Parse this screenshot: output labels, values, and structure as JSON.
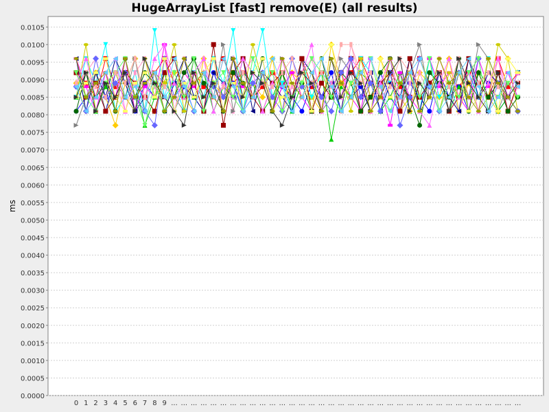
{
  "chart_data": {
    "type": "line",
    "title": "HugeArrayList [fast] remove(E) (all results)",
    "xlabel": "",
    "ylabel": "ms",
    "ylim": [
      0,
      0.0108
    ],
    "ytick_step": 0.0005,
    "grid": true,
    "legend": "none",
    "x_tick_labels": [
      "0",
      "1",
      "2",
      "3",
      "4",
      "5",
      "6",
      "7",
      "8",
      "9",
      "...",
      "...",
      "...",
      "...",
      "...",
      "...",
      "...",
      "...",
      "...",
      "...",
      "...",
      "...",
      "...",
      "...",
      "...",
      "...",
      "...",
      "...",
      "...",
      "...",
      "...",
      "...",
      "...",
      "...",
      "...",
      "...",
      "...",
      "...",
      "...",
      "...",
      "...",
      "...",
      "...",
      "...",
      "...",
      "..."
    ],
    "series_colors": [
      "#ff0000",
      "#0000ff",
      "#00cc00",
      "#ffcc00",
      "#ff00ff",
      "#00ffff",
      "#ff99cc",
      "#808080",
      "#cccc00",
      "#000080",
      "#990000",
      "#006600",
      "#ff66ff",
      "#6666ff",
      "#ffff66",
      "#66ff66",
      "#ffaaaa",
      "#333333",
      "#999900",
      "#66ccff"
    ],
    "series": [
      {
        "values": [
          0.0092,
          0.0089,
          0.0085,
          0.0096,
          0.0088,
          0.0092,
          0.0085,
          0.0089,
          0.0092,
          0.0096,
          0.0089,
          0.0085,
          0.0092,
          0.0088,
          0.0085,
          0.0096,
          0.0089,
          0.0092,
          0.0085,
          0.0088,
          0.0092,
          0.0089,
          0.0085,
          0.0096,
          0.0088,
          0.0092,
          0.0085,
          0.0089,
          0.0092,
          0.0096,
          0.0089,
          0.0085,
          0.0092,
          0.0088,
          0.0085,
          0.0096,
          0.0089,
          0.0092,
          0.0085,
          0.0088,
          0.0092,
          0.0089,
          0.0085,
          0.0096,
          0.0088,
          0.0092
        ]
      },
      {
        "values": [
          0.0081,
          0.0085,
          0.0089,
          0.0081,
          0.0092,
          0.0085,
          0.0081,
          0.0089,
          0.0085,
          0.0092,
          0.0081,
          0.0088,
          0.0085,
          0.0081,
          0.0092,
          0.0085,
          0.0089,
          0.0081,
          0.0085,
          0.0092,
          0.0081,
          0.0088,
          0.0085,
          0.0081,
          0.0089,
          0.0085,
          0.0092,
          0.0081,
          0.0085,
          0.0088,
          0.0081,
          0.0092,
          0.0085,
          0.0081,
          0.0089,
          0.0085,
          0.0081,
          0.0092,
          0.0085,
          0.0088,
          0.0081,
          0.0085,
          0.0089,
          0.0081,
          0.0085,
          0.0081
        ]
      },
      {
        "values": [
          0.0085,
          0.0092,
          0.0081,
          0.0088,
          0.0085,
          0.0092,
          0.0089,
          0.0077,
          0.0085,
          0.0092,
          0.0081,
          0.0089,
          0.0085,
          0.0092,
          0.0081,
          0.0088,
          0.0085,
          0.0092,
          0.0089,
          0.0081,
          0.0085,
          0.0092,
          0.0081,
          0.0089,
          0.0085,
          0.0092,
          0.0073,
          0.0088,
          0.0085,
          0.0092,
          0.0089,
          0.0081,
          0.0085,
          0.0092,
          0.0081,
          0.0089,
          0.0085,
          0.0092,
          0.0081,
          0.0088,
          0.0085,
          0.0092,
          0.0089,
          0.0081,
          0.0085,
          0.0089
        ]
      },
      {
        "values": [
          0.0089,
          0.0081,
          0.0092,
          0.0085,
          0.0077,
          0.0089,
          0.0096,
          0.0085,
          0.0081,
          0.0089,
          0.0092,
          0.0085,
          0.0081,
          0.0096,
          0.0089,
          0.0085,
          0.0092,
          0.0081,
          0.0089,
          0.0085,
          0.0096,
          0.0081,
          0.0092,
          0.0089,
          0.0085,
          0.0081,
          0.01,
          0.0089,
          0.0085,
          0.0092,
          0.0081,
          0.0096,
          0.0089,
          0.0085,
          0.0081,
          0.0092,
          0.0089,
          0.0085,
          0.0096,
          0.0081,
          0.0089,
          0.0092,
          0.0085,
          0.0081,
          0.0096,
          0.0092
        ]
      },
      {
        "values": [
          0.0096,
          0.0088,
          0.0081,
          0.0092,
          0.0085,
          0.0096,
          0.0081,
          0.0088,
          0.0085,
          0.01,
          0.0081,
          0.0092,
          0.0088,
          0.0085,
          0.0096,
          0.0081,
          0.0092,
          0.0088,
          0.0085,
          0.0096,
          0.0081,
          0.0088,
          0.0092,
          0.0085,
          0.0081,
          0.0096,
          0.0088,
          0.0092,
          0.0085,
          0.0081,
          0.0096,
          0.0088,
          0.0077,
          0.0092,
          0.0085,
          0.0081,
          0.0096,
          0.0088,
          0.0092,
          0.0085,
          0.0081,
          0.0096,
          0.0088,
          0.0085,
          0.0092,
          0.0085
        ]
      },
      {
        "values": [
          0.0085,
          0.0096,
          0.0089,
          0.01,
          0.0081,
          0.0085,
          0.0092,
          0.0081,
          0.0104,
          0.0085,
          0.0089,
          0.0081,
          0.0092,
          0.0085,
          0.0096,
          0.0089,
          0.0104,
          0.0081,
          0.0092,
          0.0104,
          0.0085,
          0.0089,
          0.0081,
          0.0096,
          0.0085,
          0.0092,
          0.0089,
          0.0081,
          0.0085,
          0.0096,
          0.0092,
          0.0081,
          0.0089,
          0.0085,
          0.0092,
          0.0081,
          0.0096,
          0.0085,
          0.0089,
          0.0081,
          0.0092,
          0.0085,
          0.0096,
          0.0089,
          0.0085,
          0.0092
        ]
      },
      {
        "values": [
          0.0088,
          0.0092,
          0.0096,
          0.0085,
          0.0089,
          0.0081,
          0.0092,
          0.0096,
          0.0088,
          0.0085,
          0.0081,
          0.0092,
          0.0089,
          0.0096,
          0.0085,
          0.0088,
          0.0081,
          0.0092,
          0.0096,
          0.0089,
          0.0085,
          0.0081,
          0.0088,
          0.0092,
          0.0096,
          0.0085,
          0.0089,
          0.0081,
          0.01,
          0.0092,
          0.0085,
          0.0088,
          0.0096,
          0.0081,
          0.0089,
          0.0092,
          0.0085,
          0.0096,
          0.0088,
          0.0081,
          0.0092,
          0.0089,
          0.0085,
          0.0096,
          0.0081,
          0.0088
        ]
      },
      {
        "values": [
          0.0077,
          0.0085,
          0.0092,
          0.0081,
          0.0089,
          0.0085,
          0.0096,
          0.0081,
          0.0092,
          0.0089,
          0.0085,
          0.0081,
          0.0096,
          0.0089,
          0.0085,
          0.01,
          0.0081,
          0.0092,
          0.0085,
          0.0089,
          0.0081,
          0.0096,
          0.0085,
          0.0092,
          0.0089,
          0.0081,
          0.0085,
          0.0096,
          0.0092,
          0.0081,
          0.0089,
          0.0085,
          0.0096,
          0.0081,
          0.0092,
          0.01,
          0.0085,
          0.0089,
          0.0081,
          0.0092,
          0.0085,
          0.01,
          0.0096,
          0.0081,
          0.0089,
          0.0085
        ]
      },
      {
        "values": [
          0.0085,
          0.01,
          0.0081,
          0.0089,
          0.0092,
          0.0085,
          0.0081,
          0.0096,
          0.0085,
          0.0089,
          0.01,
          0.0081,
          0.0092,
          0.0085,
          0.0089,
          0.0081,
          0.0096,
          0.0085,
          0.01,
          0.0089,
          0.0081,
          0.0092,
          0.0085,
          0.0096,
          0.0081,
          0.0089,
          0.0085,
          0.0092,
          0.0081,
          0.0096,
          0.0085,
          0.0089,
          0.0092,
          0.0081,
          0.0085,
          0.0096,
          0.0089,
          0.0081,
          0.0092,
          0.0085,
          0.0089,
          0.0081,
          0.0085,
          0.01,
          0.0096,
          0.0081
        ]
      },
      {
        "values": [
          0.0096,
          0.0081,
          0.0092,
          0.0085,
          0.0096,
          0.0089,
          0.0081,
          0.0085,
          0.0092,
          0.0081,
          0.0089,
          0.0096,
          0.0085,
          0.0081,
          0.0092,
          0.0089,
          0.0085,
          0.0096,
          0.0081,
          0.0092,
          0.0089,
          0.0085,
          0.0081,
          0.0096,
          0.0092,
          0.0085,
          0.0089,
          0.0081,
          0.0096,
          0.0085,
          0.0092,
          0.0081,
          0.0089,
          0.0085,
          0.0096,
          0.0081,
          0.0092,
          0.0089,
          0.0085,
          0.0081,
          0.0096,
          0.0085,
          0.0092,
          0.0089,
          0.0085,
          0.0092
        ]
      },
      {
        "values": [
          0.0092,
          0.0085,
          0.0089,
          0.0081,
          0.0085,
          0.0092,
          0.0089,
          0.0085,
          0.0081,
          0.0092,
          0.0096,
          0.0085,
          0.0089,
          0.0081,
          0.01,
          0.0077,
          0.0092,
          0.0096,
          0.0085,
          0.0081,
          0.0089,
          0.0092,
          0.0085,
          0.0096,
          0.0081,
          0.0089,
          0.0085,
          0.0092,
          0.0096,
          0.0081,
          0.0085,
          0.0089,
          0.0092,
          0.0081,
          0.0096,
          0.0085,
          0.0089,
          0.0092,
          0.0081,
          0.0085,
          0.0096,
          0.0089,
          0.0085,
          0.0092,
          0.0081,
          0.0089
        ]
      },
      {
        "values": [
          0.0081,
          0.0092,
          0.0085,
          0.0089,
          0.0081,
          0.0096,
          0.0085,
          0.0092,
          0.0089,
          0.0081,
          0.0085,
          0.0092,
          0.0096,
          0.0089,
          0.0085,
          0.0081,
          0.0092,
          0.0089,
          0.0085,
          0.0096,
          0.0081,
          0.0092,
          0.0085,
          0.0089,
          0.0081,
          0.0096,
          0.0085,
          0.0092,
          0.0089,
          0.0081,
          0.0085,
          0.0092,
          0.0096,
          0.0089,
          0.0085,
          0.0077,
          0.0092,
          0.0089,
          0.0085,
          0.0096,
          0.0081,
          0.0092,
          0.0085,
          0.0089,
          0.0081,
          0.0085
        ]
      },
      {
        "values": [
          0.0089,
          0.0096,
          0.0085,
          0.0092,
          0.0096,
          0.0081,
          0.0089,
          0.0085,
          0.0096,
          0.01,
          0.0089,
          0.0085,
          0.0092,
          0.0096,
          0.0081,
          0.0089,
          0.0085,
          0.0096,
          0.0092,
          0.0081,
          0.0089,
          0.0096,
          0.0085,
          0.0092,
          0.01,
          0.0081,
          0.0089,
          0.0085,
          0.0096,
          0.0092,
          0.0081,
          0.0089,
          0.0096,
          0.0085,
          0.0092,
          0.0081,
          0.0077,
          0.0089,
          0.0096,
          0.0085,
          0.0092,
          0.0081,
          0.0089,
          0.0096,
          0.0085,
          0.0092
        ]
      },
      {
        "values": [
          0.0088,
          0.0081,
          0.0096,
          0.0085,
          0.0089,
          0.0092,
          0.0085,
          0.0081,
          0.0077,
          0.0096,
          0.0085,
          0.0089,
          0.0081,
          0.0092,
          0.0088,
          0.0085,
          0.0096,
          0.0081,
          0.0089,
          0.0092,
          0.0085,
          0.0081,
          0.0096,
          0.0088,
          0.0089,
          0.0085,
          0.0081,
          0.0092,
          0.0096,
          0.0085,
          0.0089,
          0.0081,
          0.0092,
          0.0077,
          0.0085,
          0.0096,
          0.0088,
          0.0081,
          0.0089,
          0.0092,
          0.0085,
          0.0096,
          0.0081,
          0.0089,
          0.0085,
          0.0081
        ]
      },
      {
        "values": [
          0.0085,
          0.0089,
          0.0092,
          0.0096,
          0.0085,
          0.0081,
          0.0089,
          0.0092,
          0.0085,
          0.0096,
          0.0081,
          0.0089,
          0.0085,
          0.0092,
          0.0096,
          0.0081,
          0.0089,
          0.0085,
          0.0092,
          0.0096,
          0.0081,
          0.0085,
          0.0089,
          0.0092,
          0.0081,
          0.0096,
          0.01,
          0.0085,
          0.0089,
          0.0092,
          0.0081,
          0.0096,
          0.0085,
          0.0089,
          0.0092,
          0.0081,
          0.0085,
          0.0096,
          0.0089,
          0.0092,
          0.0081,
          0.0085,
          0.0096,
          0.0081,
          0.0096,
          0.0092
        ]
      },
      {
        "values": [
          0.0092,
          0.0085,
          0.0081,
          0.0089,
          0.0092,
          0.0096,
          0.0085,
          0.0077,
          0.0089,
          0.0081,
          0.0092,
          0.0085,
          0.0096,
          0.0081,
          0.0089,
          0.0092,
          0.0085,
          0.0081,
          0.0096,
          0.0089,
          0.0092,
          0.0081,
          0.0085,
          0.0089,
          0.0096,
          0.0092,
          0.0085,
          0.0081,
          0.0089,
          0.0092,
          0.0096,
          0.0085,
          0.0081,
          0.0089,
          0.0092,
          0.0085,
          0.0096,
          0.0081,
          0.0089,
          0.0085,
          0.0092,
          0.0096,
          0.0081,
          0.0085,
          0.0089,
          0.0085
        ]
      },
      {
        "values": [
          0.0089,
          0.0092,
          0.0088,
          0.0085,
          0.0092,
          0.0089,
          0.0096,
          0.0085,
          0.0092,
          0.0088,
          0.0085,
          0.0096,
          0.0089,
          0.0092,
          0.0085,
          0.0088,
          0.0096,
          0.0092,
          0.0085,
          0.0089,
          0.0088,
          0.0092,
          0.0096,
          0.0085,
          0.0089,
          0.0092,
          0.0088,
          0.01,
          0.01,
          0.0089,
          0.0092,
          0.0085,
          0.0088,
          0.0096,
          0.0092,
          0.0089,
          0.0085,
          0.0092,
          0.0088,
          0.0096,
          0.0085,
          0.0089,
          0.0092,
          0.0088,
          0.0085,
          0.0089
        ]
      },
      {
        "values": [
          0.0085,
          0.0092,
          0.0081,
          0.0089,
          0.0085,
          0.0092,
          0.0081,
          0.0096,
          0.0089,
          0.0085,
          0.0081,
          0.0077,
          0.0092,
          0.0085,
          0.0089,
          0.0081,
          0.0096,
          0.0085,
          0.0092,
          0.0089,
          0.0081,
          0.0077,
          0.0085,
          0.0092,
          0.0089,
          0.0081,
          0.0096,
          0.0085,
          0.0092,
          0.0089,
          0.0081,
          0.0085,
          0.0092,
          0.0096,
          0.0081,
          0.0089,
          0.0085,
          0.0092,
          0.0081,
          0.0096,
          0.0089,
          0.0085,
          0.0081,
          0.0092,
          0.0085,
          0.0089
        ]
      },
      {
        "values": [
          0.0096,
          0.0085,
          0.0089,
          0.0092,
          0.0081,
          0.0096,
          0.0085,
          0.0089,
          0.0092,
          0.0081,
          0.0085,
          0.0096,
          0.0089,
          0.0092,
          0.0085,
          0.0081,
          0.0096,
          0.0089,
          0.0085,
          0.0092,
          0.0081,
          0.0096,
          0.0089,
          0.0085,
          0.0092,
          0.0081,
          0.0096,
          0.0089,
          0.0085,
          0.0092,
          0.0081,
          0.0085,
          0.0096,
          0.0089,
          0.0092,
          0.0081,
          0.0085,
          0.0096,
          0.0089,
          0.0092,
          0.0085,
          0.0081,
          0.0096,
          0.0089,
          0.0085,
          0.0081
        ]
      },
      {
        "values": [
          0.0088,
          0.0081,
          0.0085,
          0.0092,
          0.0096,
          0.0085,
          0.0088,
          0.0081,
          0.0092,
          0.0085,
          0.0096,
          0.0088,
          0.0081,
          0.0092,
          0.0085,
          0.0096,
          0.0088,
          0.0081,
          0.0085,
          0.0092,
          0.0096,
          0.0088,
          0.0081,
          0.0085,
          0.0092,
          0.0096,
          0.0088,
          0.0081,
          0.0085,
          0.0092,
          0.0096,
          0.0088,
          0.0081,
          0.0085,
          0.0092,
          0.0096,
          0.0088,
          0.0081,
          0.0085,
          0.0092,
          0.0096,
          0.0088,
          0.0081,
          0.0085,
          0.0092,
          0.0088
        ]
      }
    ]
  }
}
